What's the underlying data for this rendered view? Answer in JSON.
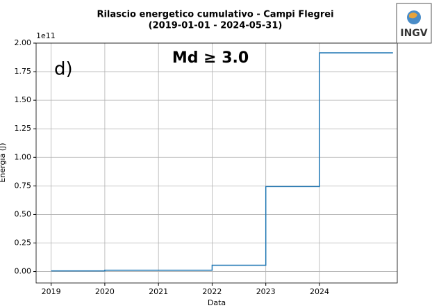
{
  "chart_data": {
    "type": "line",
    "step": "post",
    "title": "Rilascio energetico cumulativo - Campi Flegrei",
    "subtitle": "(2019-01-01 - 2024-05-31)",
    "x_label": "Data",
    "y_label": "Energia (J)",
    "y_offset_label": "1e11",
    "annotations": [
      "d)",
      "Md ≥ 3.0"
    ],
    "logo": "INGV",
    "x": [
      2019,
      2020,
      2022,
      2023,
      2024,
      2025.37
    ],
    "series": [
      {
        "name": "Energia",
        "color": "#1f77b4",
        "values": [
          0.006,
          0.012,
          0.055,
          0.744,
          1.915,
          1.915
        ]
      }
    ],
    "xlim": [
      2018.72,
      2025.45
    ],
    "xticks": [
      2019,
      2020,
      2021,
      2022,
      2023,
      2024
    ],
    "ylim": [
      -0.1,
      2.0
    ],
    "yticks": [
      {
        "value": 0,
        "label": "0.00"
      },
      {
        "value": 0.25,
        "label": "0.25"
      },
      {
        "value": 0.5,
        "label": "0.50"
      },
      {
        "value": 0.75,
        "label": "0.75"
      },
      {
        "value": 1,
        "label": "1.00"
      },
      {
        "value": 1.25,
        "label": "1.25"
      },
      {
        "value": 1.5,
        "label": "1.50"
      },
      {
        "value": 1.75,
        "label": "1.75"
      },
      {
        "value": 2,
        "label": "2.00"
      }
    ],
    "grid": true
  }
}
